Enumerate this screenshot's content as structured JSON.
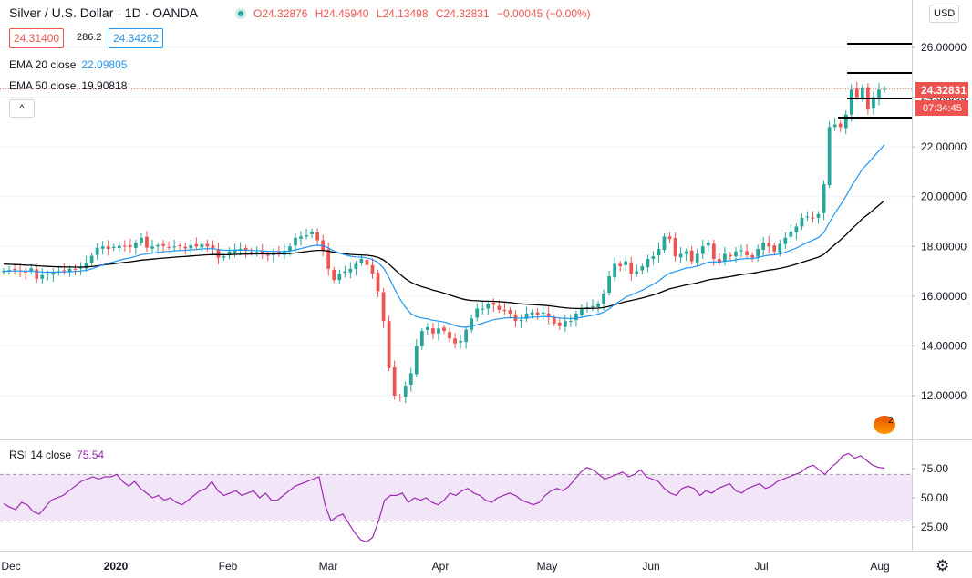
{
  "header": {
    "title": "Silver / U.S. Dollar · 1D · OANDA",
    "open": "O24.32876",
    "high": "H24.45940",
    "low": "L24.13498",
    "close": "C24.32831",
    "change": "−0.00045 (−0.00%)"
  },
  "quote": {
    "bid": "24.31400",
    "spread": "286.2",
    "ask": "24.34262"
  },
  "indicators": {
    "ema20": {
      "label": "EMA 20 close",
      "value": "22.09805"
    },
    "ema50": {
      "label": "EMA 50 close",
      "value": "19.90818"
    },
    "rsi": {
      "label": "RSI 14 close",
      "value": "75.54"
    }
  },
  "controls": {
    "currency": "USD",
    "collapse": "^"
  },
  "price_axis": {
    "ticks": [
      "26.00000",
      "24.00000",
      "22.00000",
      "20.00000",
      "18.00000",
      "16.00000",
      "14.00000",
      "12.00000"
    ],
    "last_price": "24.32831",
    "countdown": "07:34:45"
  },
  "rsi_axis": {
    "ticks": [
      "75.00",
      "50.00",
      "25.00"
    ]
  },
  "time_axis": {
    "labels": [
      "Dec",
      "2020",
      "Feb",
      "Mar",
      "Apr",
      "May",
      "Jun",
      "Jul",
      "Aug"
    ]
  },
  "badge": {
    "text": "2"
  },
  "colors": {
    "up": "#26a69a",
    "down": "#ef5350",
    "ema20": "#2196f3",
    "ema50": "#000000",
    "rsi": "#9c27b0",
    "rsi_band": "#f3e5f8"
  },
  "chart_data": {
    "type": "candlestick",
    "symbol": "XAGUSD",
    "timeframe": "1D",
    "ylim": [
      10.8,
      27.6
    ],
    "rsi_ylim": [
      5,
      100
    ],
    "x_tick_labels": [
      "Dec",
      "2020",
      "Feb",
      "Mar",
      "Apr",
      "May",
      "Jun",
      "Jul",
      "Aug"
    ],
    "closes": [
      17.02,
      17.05,
      17.08,
      17.01,
      16.95,
      17.12,
      16.7,
      16.85,
      16.9,
      16.95,
      17.0,
      17.02,
      17.1,
      17.08,
      17.15,
      17.35,
      17.62,
      17.95,
      18.0,
      17.9,
      17.98,
      18.03,
      18.0,
      17.98,
      18.15,
      18.35,
      17.95,
      18.0,
      18.05,
      18.02,
      17.97,
      18.0,
      18.02,
      17.92,
      18.05,
      18.0,
      18.1,
      18.0,
      17.92,
      17.55,
      17.6,
      17.8,
      17.88,
      17.9,
      17.82,
      17.75,
      17.78,
      17.7,
      17.65,
      17.75,
      17.7,
      17.82,
      18.0,
      18.35,
      18.4,
      18.45,
      18.6,
      18.25,
      17.85,
      17.1,
      16.65,
      16.9,
      17.0,
      17.1,
      17.3,
      17.5,
      17.25,
      16.9,
      16.2,
      15.0,
      13.1,
      12.0,
      11.95,
      12.4,
      12.9,
      14.0,
      14.6,
      14.75,
      14.5,
      14.7,
      14.6,
      14.3,
      14.1,
      14.2,
      14.65,
      15.1,
      15.5,
      15.5,
      15.7,
      15.65,
      15.45,
      15.4,
      15.3,
      15.0,
      15.05,
      15.3,
      15.35,
      15.25,
      15.35,
      15.15,
      14.9,
      14.8,
      15.0,
      15.0,
      15.3,
      15.5,
      15.55,
      15.6,
      15.7,
      16.1,
      16.8,
      17.3,
      17.2,
      17.4,
      16.9,
      17.0,
      17.2,
      17.5,
      17.6,
      17.9,
      18.4,
      18.3,
      17.6,
      17.7,
      17.8,
      17.4,
      17.7,
      18.0,
      18.15,
      17.5,
      17.35,
      17.7,
      17.6,
      17.8,
      17.85,
      17.65,
      17.55,
      17.9,
      18.15,
      18.0,
      17.8,
      18.1,
      18.35,
      18.6,
      18.8,
      19.15,
      19.2,
      19.15,
      19.3,
      20.5,
      22.8,
      22.9,
      22.8,
      23.3,
      24.3,
      24.0,
      24.4,
      23.5,
      24.0,
      24.3,
      24.33
    ],
    "rsi_values": [
      45,
      42,
      40,
      46,
      44,
      38,
      36,
      42,
      48,
      50,
      52,
      56,
      60,
      64,
      66,
      68,
      66,
      68,
      68,
      70,
      64,
      60,
      64,
      58,
      54,
      50,
      52,
      48,
      50,
      46,
      44,
      48,
      52,
      56,
      58,
      64,
      56,
      52,
      54,
      56,
      52,
      54,
      56,
      50,
      54,
      48,
      48,
      52,
      56,
      60,
      62,
      64,
      66,
      68,
      44,
      30,
      34,
      36,
      28,
      20,
      14,
      12,
      16,
      30,
      48,
      52,
      52,
      54,
      46,
      50,
      48,
      50,
      46,
      44,
      48,
      54,
      52,
      56,
      58,
      54,
      52,
      48,
      46,
      50,
      52,
      54,
      52,
      48,
      46,
      44,
      46,
      52,
      56,
      58,
      56,
      60,
      66,
      72,
      76,
      74,
      70,
      66,
      68,
      70,
      72,
      68,
      70,
      74,
      68,
      66,
      64,
      58,
      54,
      52,
      58,
      60,
      58,
      52,
      56,
      54,
      58,
      60,
      62,
      56,
      54,
      58,
      60,
      62,
      58,
      60,
      64,
      66,
      68,
      70,
      72,
      76,
      78,
      74,
      70,
      76,
      80,
      86,
      88,
      84,
      86,
      82,
      78,
      76,
      75.5
    ]
  }
}
